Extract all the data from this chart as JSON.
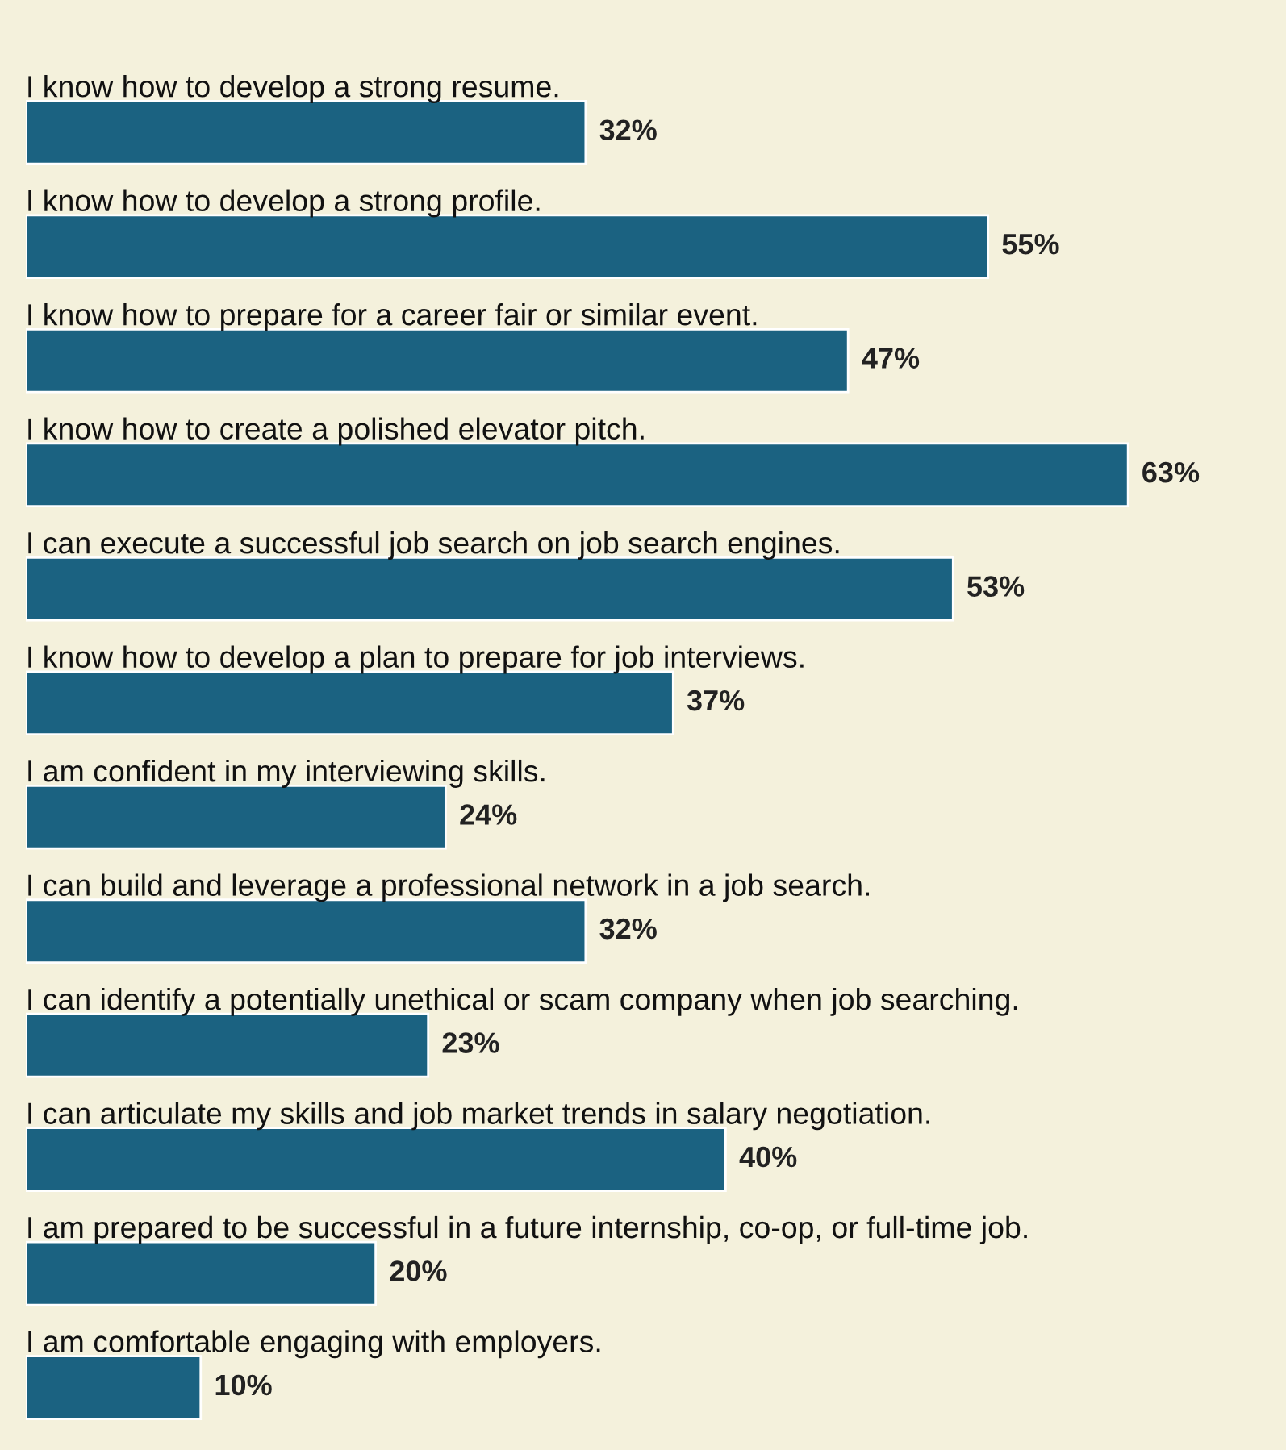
{
  "chart_data": {
    "type": "bar",
    "orientation": "horizontal",
    "value_labels": [
      "32%",
      "55%",
      "47%",
      "63%",
      "53%",
      "37%",
      "24%",
      "32%",
      "23%",
      "40%",
      "20%",
      "10%"
    ],
    "categories": [
      "I know how to develop a strong resume.",
      "I know how to develop a strong profile.",
      "I know how to prepare for a career fair or similar event.",
      "I know how to create a polished elevator pitch.",
      "I can execute a successful job search on job search engines.",
      "I know how to develop a plan to prepare for job interviews.",
      "I am confident in my interviewing skills.",
      "I can build and leverage a professional network in a job search.",
      "I can identify a potentially unethical or scam company when job searching.",
      "I can articulate my skills and job market trends in salary negotiation.",
      "I am prepared to be successful in a future internship, co-op, or full-time job.",
      "I am comfortable engaging with employers."
    ],
    "values": [
      32,
      55,
      47,
      63,
      53,
      37,
      24,
      32,
      23,
      40,
      20,
      10
    ],
    "color": "#1b6281"
  }
}
